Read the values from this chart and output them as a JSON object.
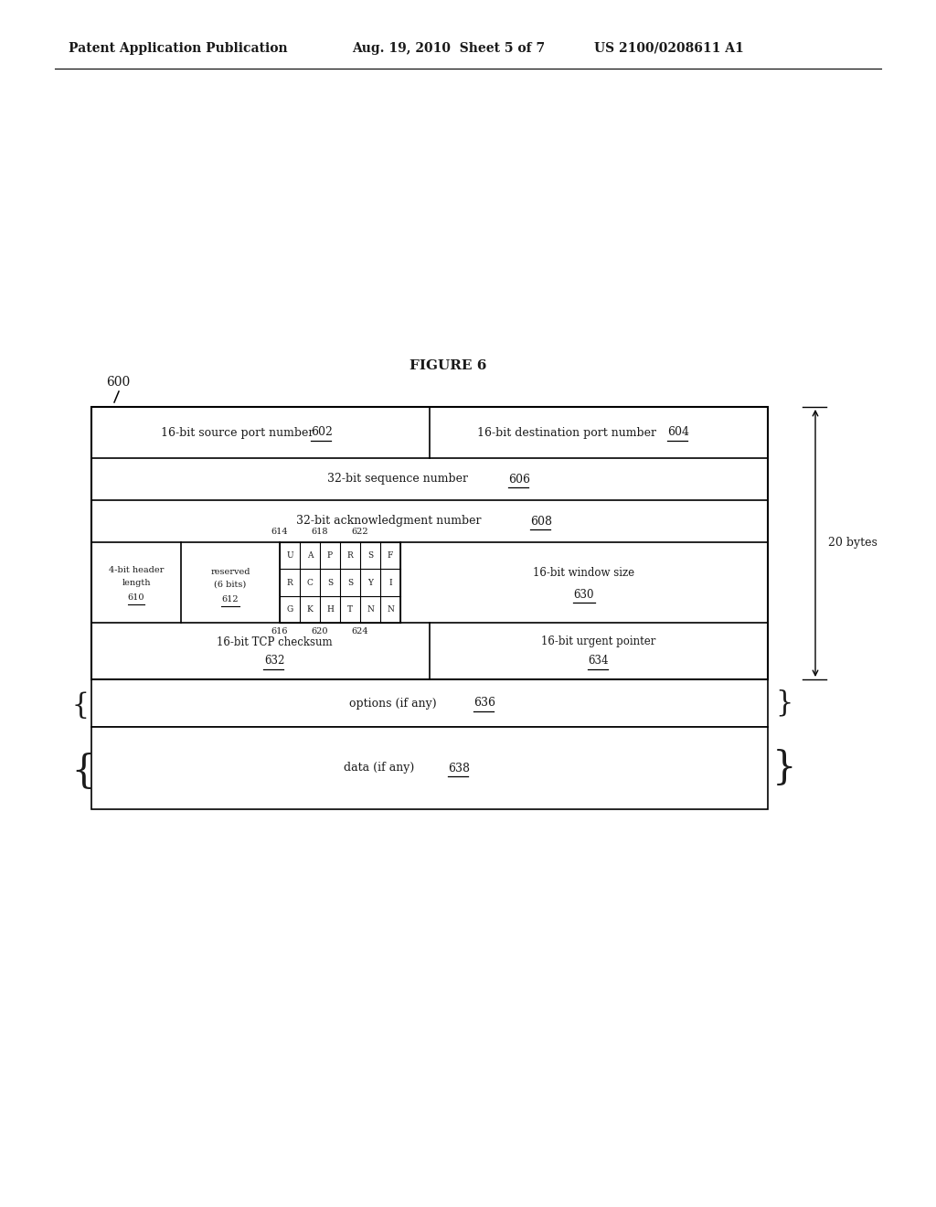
{
  "bg_color": "#ffffff",
  "text_color": "#1a1a1a",
  "header_left": "Patent Application Publication",
  "header_mid": "Aug. 19, 2010  Sheet 5 of 7",
  "header_right": "US 2100/0208611 A1",
  "figure_title": "FIGURE 6",
  "diagram_ref": "600",
  "bytes_label": "20 bytes",
  "row1_left_text": "16-bit source port number",
  "row1_left_ref": "602",
  "row1_right_text": "16-bit destination port number",
  "row1_right_ref": "604",
  "row2_text": "32-bit sequence number",
  "row2_ref": "606",
  "row3_text": "32-bit acknowledgment number",
  "row3_ref": "608",
  "row4_ref_above": [
    "614",
    "618",
    "622"
  ],
  "row4_ref_below": [
    "616",
    "620",
    "624"
  ],
  "hdr_text1": "4-bit header",
  "hdr_text2": "length",
  "hdr_ref": "610",
  "rsv_text1": "reserved",
  "rsv_text2": "(6 bits)",
  "rsv_ref": "612",
  "flags_row1": [
    "U",
    "A",
    "P",
    "R",
    "S",
    "F"
  ],
  "flags_row2": [
    "R",
    "C",
    "S",
    "S",
    "Y",
    "I"
  ],
  "flags_row3": [
    "G",
    "K",
    "H",
    "T",
    "N",
    "N"
  ],
  "win_text": "16-bit window size",
  "win_ref": "630",
  "chk_text": "16-bit TCP checksum",
  "chk_ref": "632",
  "urg_text": "16-bit urgent pointer",
  "urg_ref": "634",
  "opts_text": "options (if any)",
  "opts_ref": "636",
  "data_text": "data (if any)",
  "data_ref": "638"
}
